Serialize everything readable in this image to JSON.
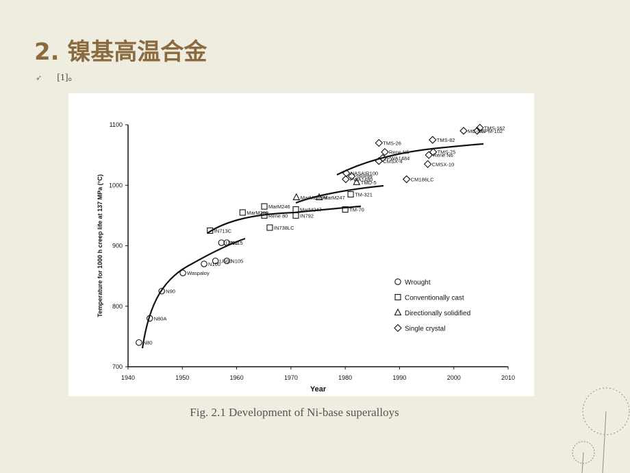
{
  "title": "2.  镍基高温合金",
  "bullet": "[1]。",
  "caption": "Fig. 2.1 Development of Ni-base superalloys",
  "chart_data": {
    "type": "scatter",
    "xlabel": "Year",
    "ylabel": "Temperature for 1000 h creep life at 137 MPa (°C)",
    "xlim": [
      1940,
      2010
    ],
    "ylim": [
      700,
      1100
    ],
    "xticks": [
      1940,
      1950,
      1960,
      1970,
      1980,
      1990,
      2000,
      2010
    ],
    "yticks": [
      700,
      800,
      900,
      1000,
      1100
    ],
    "grid": false,
    "legend": "lower right",
    "series": [
      {
        "name": "Wrought",
        "marker": "circle",
        "color": "#111111",
        "x": [
          1942,
          1944,
          1946.2,
          1950.1,
          1954,
          1956.1,
          1958.2,
          1957.2,
          1958.2
        ],
        "values": [
          740,
          780,
          825,
          855,
          870,
          875,
          875,
          905,
          905
        ],
        "labels": [
          "N80",
          "N80A",
          "N90",
          "Waspaloy",
          "N100",
          "U500",
          "N105",
          "U700",
          "N115"
        ]
      },
      {
        "name": "Conventionally cast",
        "marker": "square",
        "color": "#111111",
        "x": [
          1955.1,
          1961.1,
          1965.1,
          1965.1,
          1966.1,
          1970.9,
          1970.9,
          1980,
          1981
        ],
        "values": [
          925,
          955,
          965,
          950,
          930,
          950,
          960,
          960,
          985
        ],
        "labels": [
          "IN713C",
          "MarM200",
          "MarM246",
          "Rene 80",
          "IN738LC",
          "IN792",
          "MarM247",
          "TM-70",
          "TM-321"
        ]
      },
      {
        "name": "Directionally solidified",
        "marker": "triangle",
        "color": "#111111",
        "x": [
          1971,
          1975.2,
          1982.1
        ],
        "values": [
          980,
          980,
          1005
        ],
        "labels": [
          "MarM200Hf",
          "MarM247",
          "TMD-5"
        ]
      },
      {
        "name": "Single crystal",
        "marker": "diamond",
        "color": "#111111",
        "x": [
          1980.1,
          1980.2,
          1981.2,
          1986.2,
          1986.9,
          1986.2,
          1987.3,
          1991.3,
          1995.4,
          1995.2,
          1996.1,
          1996.2,
          2001.8,
          2004.8,
          2004.3
        ],
        "values": [
          1010,
          1020,
          1015,
          1040,
          1045,
          1070,
          1055,
          1010,
          1050,
          1035,
          1075,
          1055,
          1090,
          1095,
          1090
        ],
        "labels": [
          "PWA1480",
          "NASAIR100",
          "SRR99",
          "CMSX-4",
          "PWA1484",
          "TMS-26",
          "Rene N5",
          "CM186LC",
          "Rene N6",
          "CMSX-10",
          "TMS-82",
          "TMS-75",
          "MC-NG",
          "TMS-162",
          "EPM-102"
        ]
      }
    ]
  }
}
